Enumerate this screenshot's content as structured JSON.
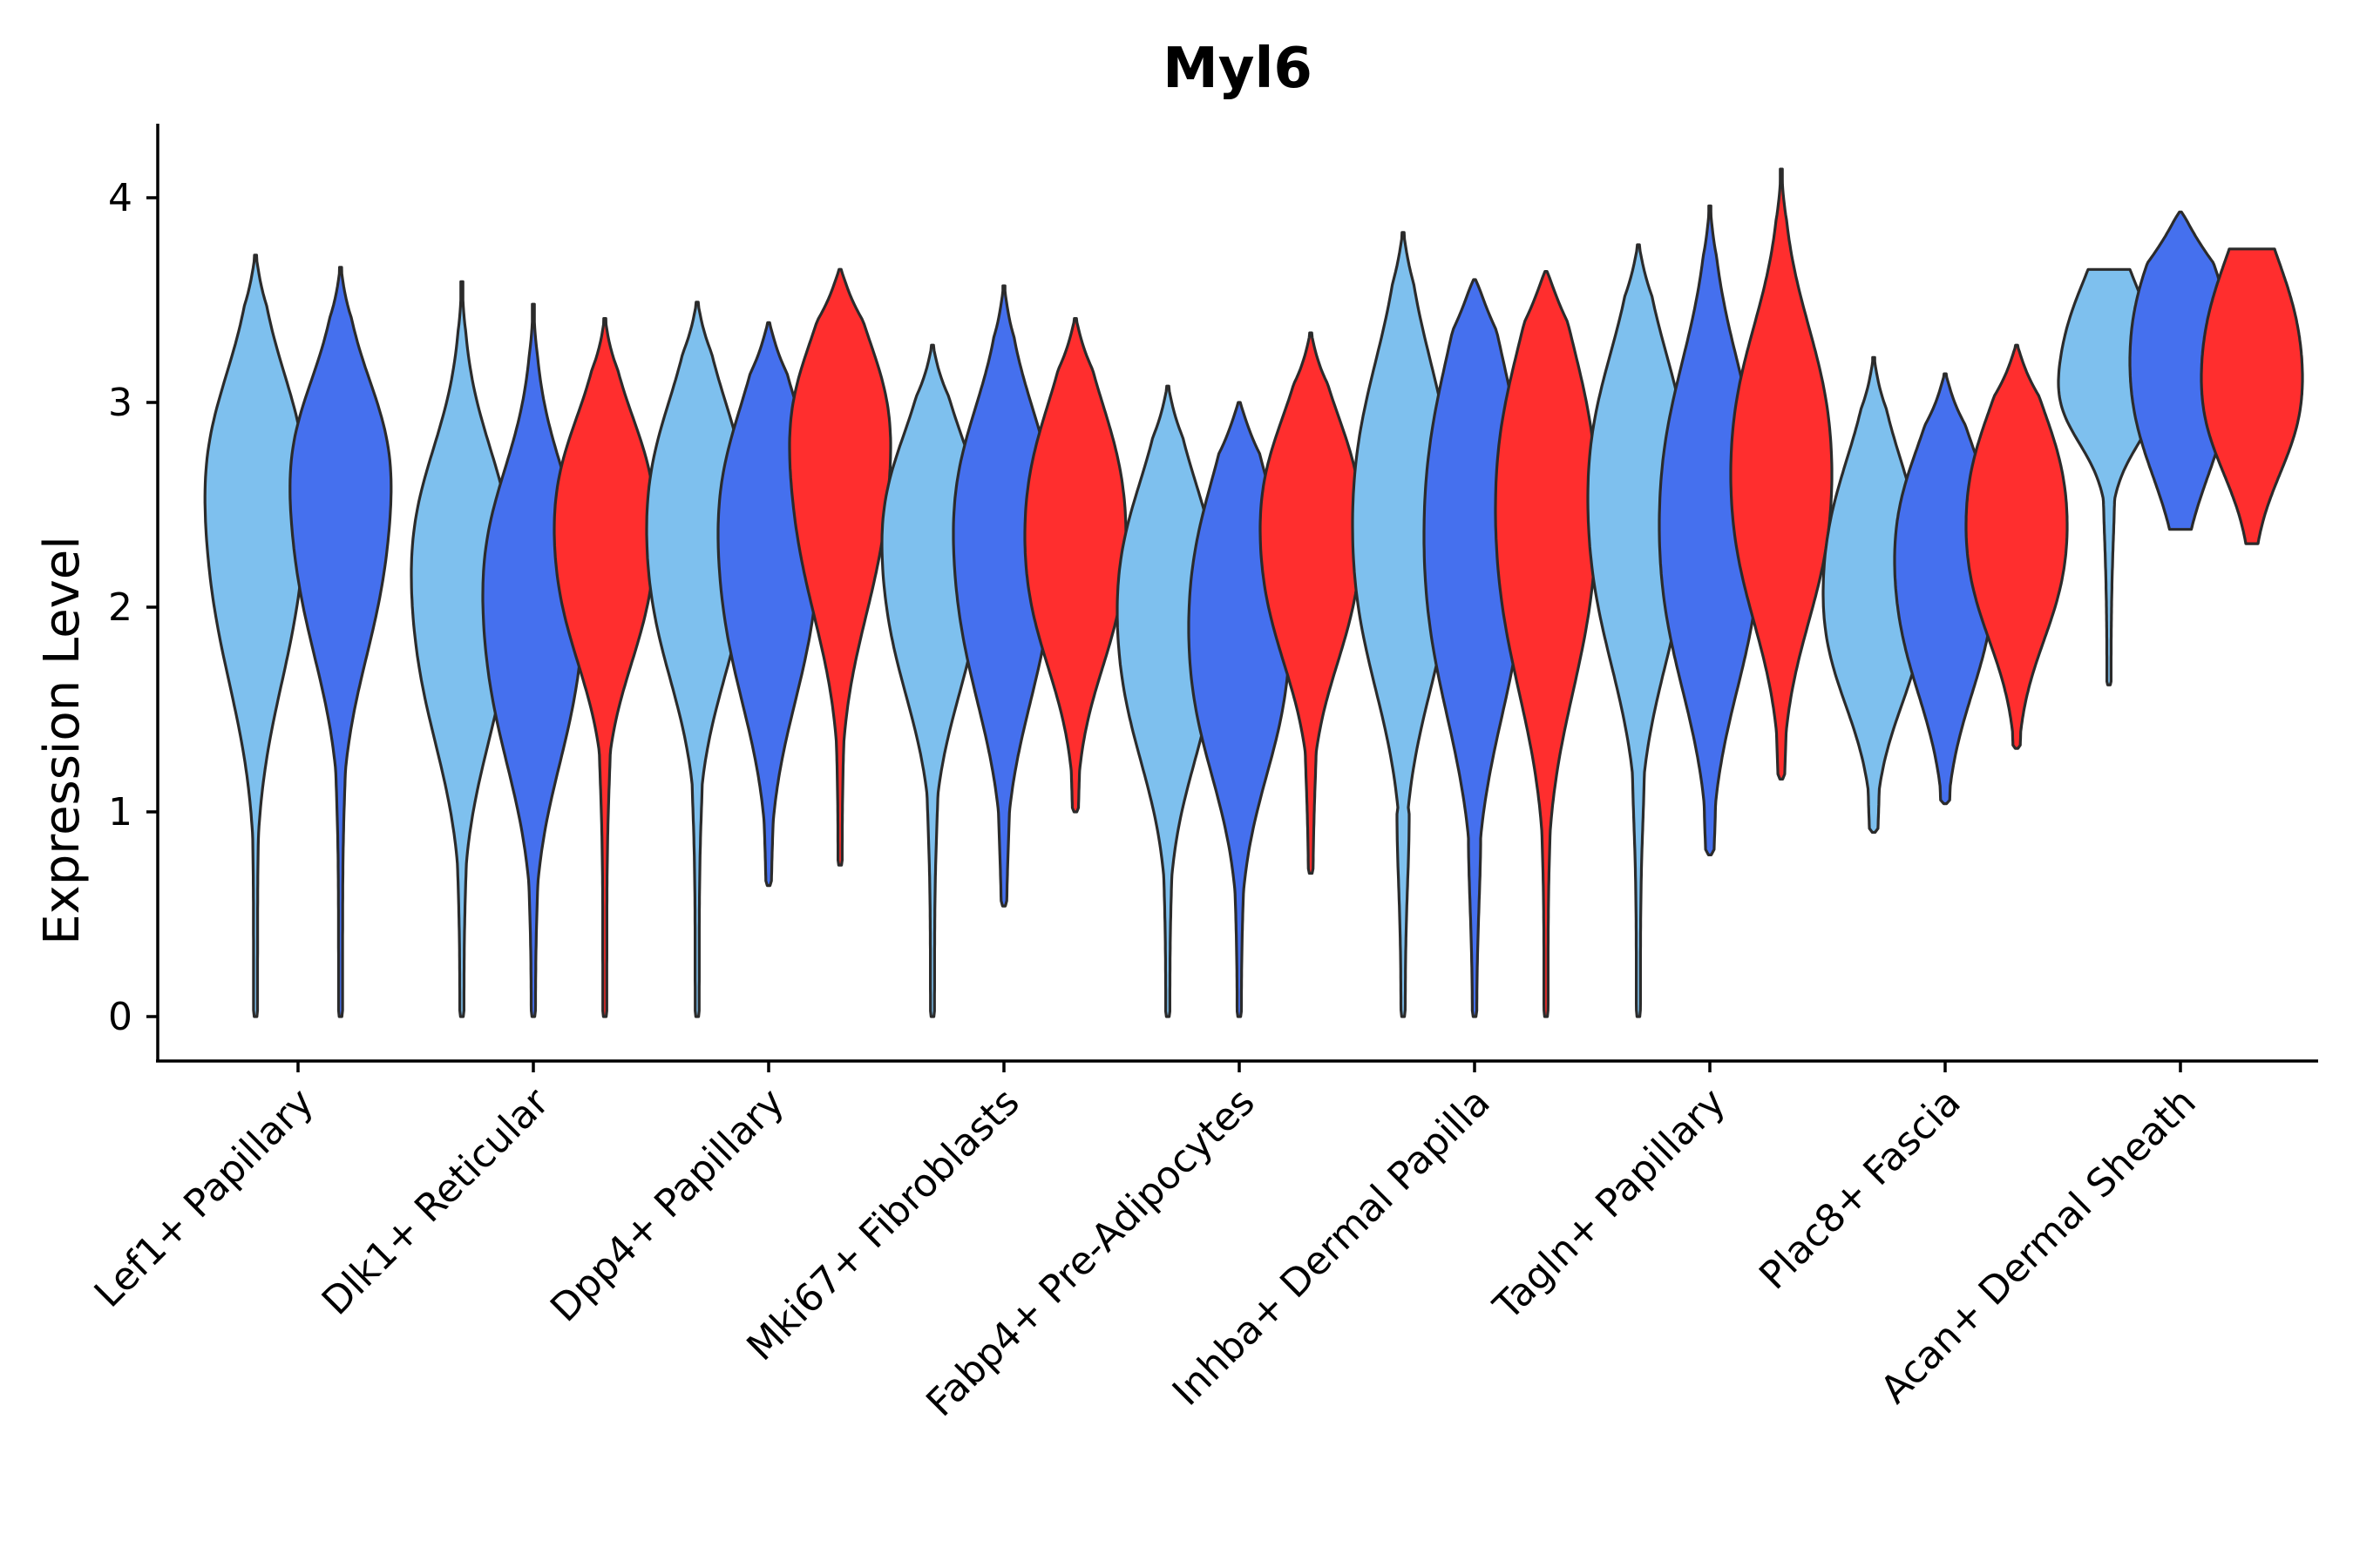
{
  "chart_data": {
    "type": "violin",
    "title": "Myl6",
    "xlabel": "",
    "ylabel": "Expression Level",
    "ylim": [
      -0.2,
      4.35
    ],
    "yticks": [
      0,
      1,
      2,
      3,
      4
    ],
    "ytick_labels": [
      "0",
      "1",
      "2",
      "3",
      "4"
    ],
    "grid": false,
    "legend": "none",
    "series_colors": {
      "s1": "#7EC0EE",
      "s2": "#4570EE",
      "s3": "#FF2E2E"
    },
    "categories": [
      "Lef1+ Papillary",
      "Dlk1+ Reticular",
      "Dpp4+ Papillary",
      "Mki67+ Fibroblasts",
      "Fabp4+ Pre-Adipocytes",
      "Inhba+ Dermal Papilla",
      "Tagln+ Papillary",
      "Plac8+ Fascia",
      "Acan+ Dermal Sheath"
    ],
    "violins": [
      {
        "category": "Lef1+ Papillary",
        "series": "s1",
        "min": 0.0,
        "max": 3.72,
        "median": 2.45,
        "q1": 1.9,
        "q3": 2.85,
        "tail_start": 1.5
      },
      {
        "category": "Lef1+ Papillary",
        "series": "s2",
        "min": 0.0,
        "max": 3.66,
        "median": 2.5,
        "q1": 2.0,
        "q3": 2.85,
        "tail_start": 1.5
      },
      {
        "category": "Dlk1+ Reticular",
        "series": "s1",
        "min": 0.0,
        "max": 3.59,
        "median": 2.1,
        "q1": 1.6,
        "q3": 2.5,
        "tail_start": 1.1
      },
      {
        "category": "Dlk1+ Reticular",
        "series": "s2",
        "min": 0.0,
        "max": 3.48,
        "median": 2.0,
        "q1": 1.5,
        "q3": 2.4,
        "tail_start": 1.0
      },
      {
        "category": "Dlk1+ Reticular",
        "series": "s3",
        "min": 0.0,
        "max": 3.41,
        "median": 2.35,
        "q1": 1.95,
        "q3": 2.7,
        "tail_start": 1.5
      },
      {
        "category": "Dpp4+ Papillary",
        "series": "s1",
        "min": 0.0,
        "max": 3.49,
        "median": 2.35,
        "q1": 1.9,
        "q3": 2.75,
        "tail_start": 1.4
      },
      {
        "category": "Dpp4+ Papillary",
        "series": "s2",
        "min": 0.64,
        "max": 3.39,
        "median": 2.3,
        "q1": 1.8,
        "q3": 2.7,
        "tail_start": 1.3
      },
      {
        "category": "Dpp4+ Papillary",
        "series": "s3",
        "min": 0.74,
        "max": 3.65,
        "median": 2.7,
        "q1": 2.2,
        "q3": 3.05,
        "tail_start": 1.8
      },
      {
        "category": "Mki67+ Fibroblasts",
        "series": "s1",
        "min": 0.0,
        "max": 3.28,
        "median": 2.25,
        "q1": 1.8,
        "q3": 2.6,
        "tail_start": 1.3
      },
      {
        "category": "Mki67+ Fibroblasts",
        "series": "s2",
        "min": 0.54,
        "max": 3.57,
        "median": 2.3,
        "q1": 1.8,
        "q3": 2.7,
        "tail_start": 1.2
      },
      {
        "category": "Mki67+ Fibroblasts",
        "series": "s3",
        "min": 1.0,
        "max": 3.41,
        "median": 2.35,
        "q1": 1.95,
        "q3": 2.75,
        "tail_start": 1.6
      },
      {
        "category": "Fabp4+ Pre-Adipocytes",
        "series": "s1",
        "min": 0.0,
        "max": 3.08,
        "median": 1.95,
        "q1": 1.5,
        "q3": 2.35,
        "tail_start": 1.1
      },
      {
        "category": "Fabp4+ Pre-Adipocytes",
        "series": "s2",
        "min": 0.0,
        "max": 3.0,
        "median": 1.9,
        "q1": 1.45,
        "q3": 2.35,
        "tail_start": 1.0
      },
      {
        "category": "Fabp4+ Pre-Adipocytes",
        "series": "s3",
        "min": 0.7,
        "max": 3.34,
        "median": 2.35,
        "q1": 1.95,
        "q3": 2.7,
        "tail_start": 1.5
      },
      {
        "category": "Inhba+ Dermal Papilla",
        "series": "s1",
        "min": 0.0,
        "max": 3.83,
        "median": 2.4,
        "q1": 1.9,
        "q3": 2.9,
        "tail_start": 1.0
      },
      {
        "category": "Inhba+ Dermal Papilla",
        "series": "s2",
        "min": 0.0,
        "max": 3.6,
        "median": 2.35,
        "q1": 1.8,
        "q3": 2.9,
        "tail_start": 0.9
      },
      {
        "category": "Inhba+ Dermal Papilla",
        "series": "s3",
        "min": 0.0,
        "max": 3.64,
        "median": 2.45,
        "q1": 1.9,
        "q3": 2.95,
        "tail_start": 1.3
      },
      {
        "category": "Tagln+ Papillary",
        "series": "s1",
        "min": 0.0,
        "max": 3.77,
        "median": 2.5,
        "q1": 2.0,
        "q3": 2.95,
        "tail_start": 1.3
      },
      {
        "category": "Tagln+ Papillary",
        "series": "s2",
        "min": 0.79,
        "max": 3.96,
        "median": 2.4,
        "q1": 1.9,
        "q3": 2.9,
        "tail_start": 1.2
      },
      {
        "category": "Tagln+ Papillary",
        "series": "s3",
        "min": 1.16,
        "max": 4.14,
        "median": 2.65,
        "q1": 2.2,
        "q3": 3.1,
        "tail_start": 1.7
      },
      {
        "category": "Plac8+ Fascia",
        "series": "s1",
        "min": 0.9,
        "max": 3.22,
        "median": 2.1,
        "q1": 1.75,
        "q3": 2.5,
        "tail_start": 1.3
      },
      {
        "category": "Plac8+ Fascia",
        "series": "s2",
        "min": 1.04,
        "max": 3.14,
        "median": 2.2,
        "q1": 1.8,
        "q3": 2.55,
        "tail_start": 1.4
      },
      {
        "category": "Plac8+ Fascia",
        "series": "s3",
        "min": 1.31,
        "max": 3.28,
        "median": 2.4,
        "q1": 2.05,
        "q3": 2.75,
        "tail_start": 1.8
      },
      {
        "category": "Acan+ Dermal Sheath",
        "series": "s1",
        "min": 1.62,
        "max": 3.65,
        "median": 3.15,
        "q1": 2.95,
        "q3": 3.45,
        "tail_start": 2.7,
        "flat_top": true
      },
      {
        "category": "Acan+ Dermal Sheath",
        "series": "s2",
        "min": 2.38,
        "max": 3.93,
        "median": 3.2,
        "q1": 2.85,
        "q3": 3.55,
        "tail_start": 2.38,
        "flat_bottom": true
      },
      {
        "category": "Acan+ Dermal Sheath",
        "series": "s3",
        "min": 2.31,
        "max": 3.75,
        "median": 3.15,
        "q1": 2.85,
        "q3": 3.5,
        "tail_start": 2.31,
        "flat_top": true,
        "flat_bottom": true
      }
    ]
  }
}
